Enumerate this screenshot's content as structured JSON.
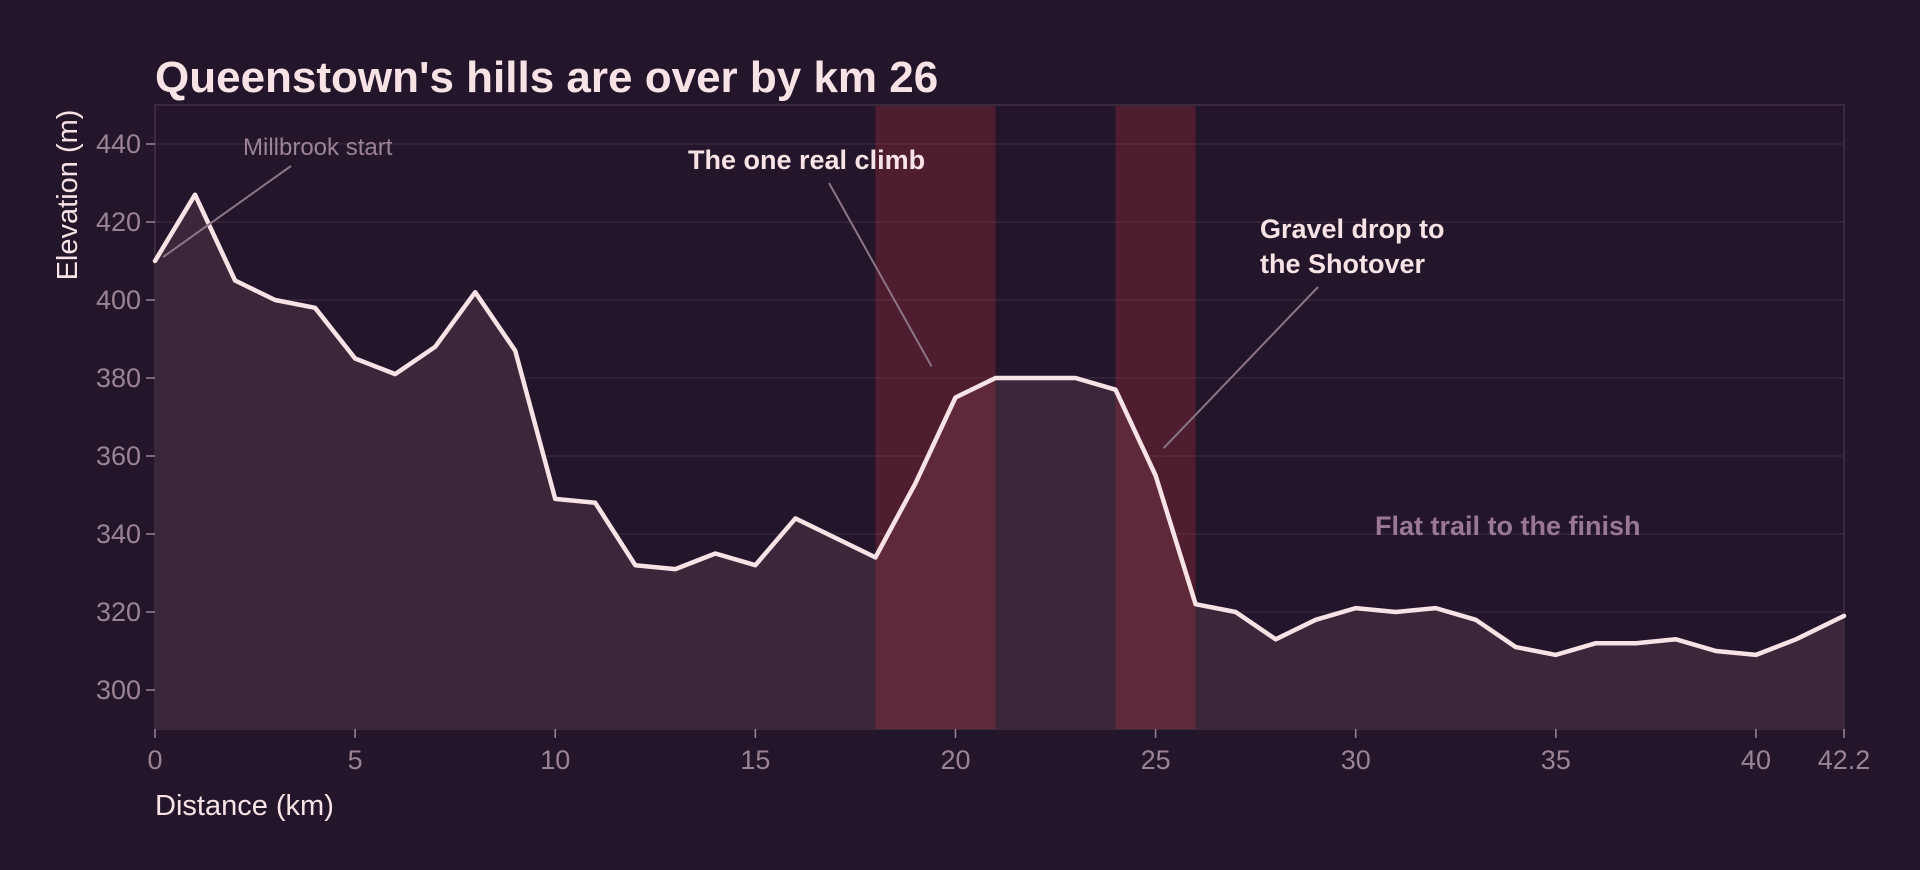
{
  "chart_data": {
    "type": "area",
    "title": "Queenstown's hills are over by km 26",
    "xlabel": "Distance (km)",
    "ylabel": "Elevation (m)",
    "xlim": [
      0,
      42.2
    ],
    "ylim": [
      290,
      450
    ],
    "xticks": [
      0,
      5,
      10,
      15,
      20,
      25,
      30,
      35,
      40,
      42.2
    ],
    "xtick_labels": [
      "0",
      "5",
      "10",
      "15",
      "20",
      "25",
      "30",
      "35",
      "40",
      "42.2"
    ],
    "yticks": [
      300,
      320,
      340,
      360,
      380,
      400,
      420,
      440
    ],
    "ytick_labels": [
      "300",
      "320",
      "340",
      "360",
      "380",
      "400",
      "420",
      "440"
    ],
    "grid": true,
    "x": [
      0,
      1,
      2,
      3,
      4,
      5,
      6,
      7,
      8,
      9,
      10,
      11,
      12,
      13,
      14,
      15,
      16,
      17,
      18,
      19,
      20,
      21,
      22,
      23,
      24,
      25,
      26,
      27,
      28,
      29,
      30,
      31,
      32,
      33,
      34,
      35,
      36,
      37,
      38,
      39,
      40,
      41,
      42.2
    ],
    "y": [
      410,
      427,
      405,
      400,
      398,
      385,
      381,
      388,
      402,
      387,
      349,
      348,
      332,
      331,
      335,
      332,
      344,
      339,
      334,
      353,
      375,
      380,
      380,
      380,
      377,
      355,
      322,
      320,
      313,
      318,
      321,
      320,
      321,
      318,
      311,
      309,
      312,
      312,
      313,
      310,
      309,
      313,
      319
    ],
    "highlight_bands": [
      {
        "x_start": 18,
        "x_end": 21
      },
      {
        "x_start": 24,
        "x_end": 26
      }
    ],
    "annotations": [
      {
        "id": "start",
        "text_lines": [
          "Millbrook start"
        ],
        "x": 0.2,
        "y": 411,
        "style": "muted"
      },
      {
        "id": "climb",
        "text_lines": [
          "The one real climb"
        ],
        "x": 19.4,
        "y": 383,
        "style": "strong"
      },
      {
        "id": "drop",
        "text_lines": [
          "Gravel drop to",
          "the Shotover"
        ],
        "x": 25.2,
        "y": 362,
        "style": "strong"
      },
      {
        "id": "flat",
        "text_lines": [
          "Flat trail to the finish"
        ],
        "style": "muted-bold"
      }
    ]
  },
  "colors": {
    "background": "#23152a",
    "plot_background": "#23152a",
    "line": "#f7e2e6",
    "area_fill": "#3a2739",
    "band_fill": "#b4323c",
    "band_opacity": 0.3,
    "grid": "#36263a",
    "leader_line": "#8c7585"
  }
}
